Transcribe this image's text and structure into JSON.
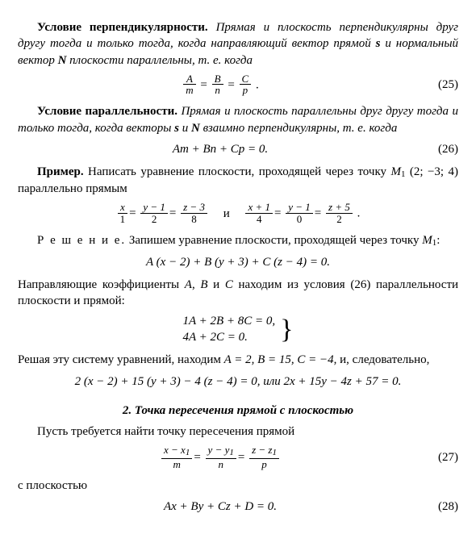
{
  "p1_lead": "Условие перпендикулярности.",
  "p1_body": " Прямая и плоскость перпендикулярны друг другу тогда и только тогда, когда направляющий вектор прямой ",
  "p1_s": "s",
  "p1_body2": " и нормальный вектор ",
  "p1_N": "N",
  "p1_body3": " плоскости параллельны, т. е. когда",
  "eq25": {
    "A": "A",
    "m": "m",
    "B": "B",
    "n": "n",
    "C": "C",
    "p": "p",
    "num": "(25)"
  },
  "p2_lead": "Условие параллельности.",
  "p2_body": " Прямая и плоскость параллельны друг другу тогда и только тогда, когда векторы ",
  "p2_s": "s",
  "p2_and": " и ",
  "p2_N": "N",
  "p2_body2": " взаимно перпендикулярны, т. е. когда",
  "eq26": {
    "text": "Am + Bn + Cp = 0.",
    "num": "(26)"
  },
  "p3_lead": "Пример.",
  "p3_body": " Написать уравнение плоскости, проходящей через точку ",
  "p3_pt": "M",
  "p3_pt_sub": "1",
  "p3_coords": " (2;  −3;  4) параллельно прямым",
  "eq_ex": {
    "l": {
      "a": "x",
      "am": "1",
      "b": "y − 1",
      "bm": "2",
      "c": "z − 3",
      "cm": "8"
    },
    "mid": "и",
    "r": {
      "a": "x + 1",
      "am": "4",
      "b": "y − 1",
      "bm": "0",
      "c": "z + 5",
      "cm": "2"
    },
    "dot": "."
  },
  "p4_lead": "Р е ш е н и е.",
  "p4_body": " Запишем уравнение плоскости, проходящей через точку ",
  "p4_pt": "M",
  "p4_pt_sub": "1",
  "p4_colon": ":",
  "eq_plane": "A (x − 2) + B (y + 3) + C (z − 4) = 0.",
  "p5_a": "Направляющие коэффициенты ",
  "p5_A": "A",
  "p5_c1": ", ",
  "p5_B": "B",
  "p5_and": " и ",
  "p5_C": "C",
  "p5_b": " находим из условия (26) параллельности плоскости и прямой:",
  "sys": {
    "l1": "1A + 2B + 8C = 0,",
    "l2": "4A + 2C = 0."
  },
  "p6_a": "Решая эту систему уравнений, находим ",
  "p6_vals": "A = 2,  B = 15,  C = −4",
  "p6_b": ", и, следовательно,",
  "eq_final": "2 (x − 2) + 15 (y + 3) − 4 (z − 4) = 0,  или  2x + 15y − 4z + 57 = 0.",
  "section2": "2. Точка пересечения прямой с плоскостью",
  "p7": "Пусть требуется найти точку пересечения прямой",
  "eq27": {
    "a": "x − x",
    "as": "1",
    "am": "m",
    "b": "y − y",
    "bs": "1",
    "bm": "n",
    "c": "z − z",
    "cs": "1",
    "cm": "p",
    "num": "(27)"
  },
  "p8": "с плоскостью",
  "eq28": {
    "text": "Ax + By + Cz + D = 0.",
    "num": "(28)"
  }
}
